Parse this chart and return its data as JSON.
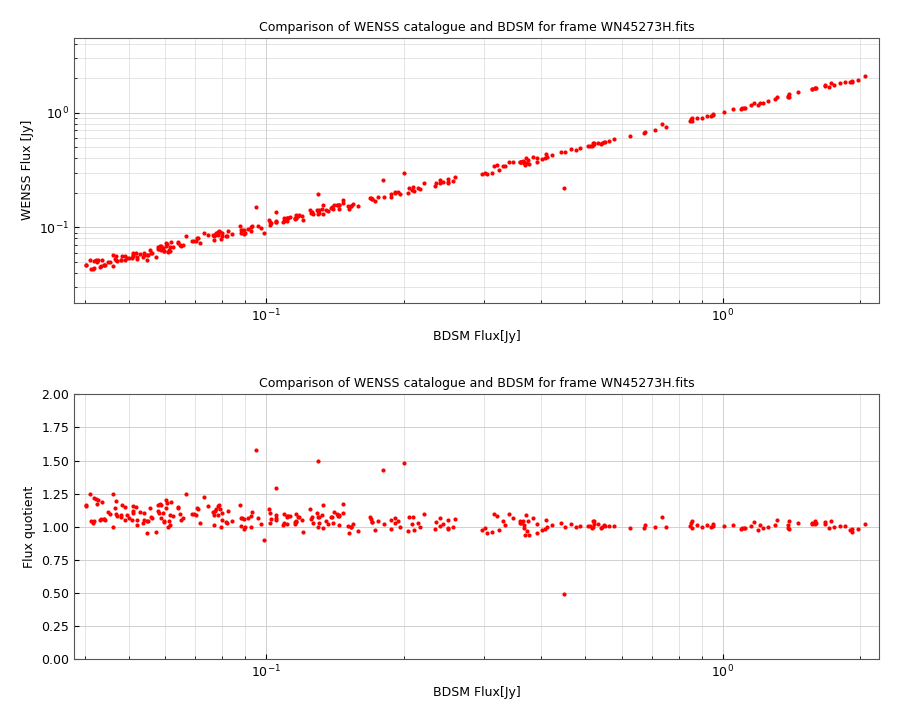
{
  "title": "Comparison of WENSS catalogue and BDSM for frame WN45273H.fits",
  "xlabel": "BDSM Flux[Jy]",
  "ylabel1": "WENSS Flux [Jy]",
  "ylabel2": "Flux quotient",
  "marker_color": "#ff0000",
  "marker_size": 3,
  "background_color": "#ffffff",
  "grid_color": "#d0d0d0",
  "xlim1": [
    0.038,
    2.2
  ],
  "ylim1": [
    0.022,
    4.5
  ],
  "xlim2": [
    0.038,
    2.2
  ],
  "ylim2": [
    0.0,
    2.0
  ],
  "seed": 42,
  "n_points": 290
}
